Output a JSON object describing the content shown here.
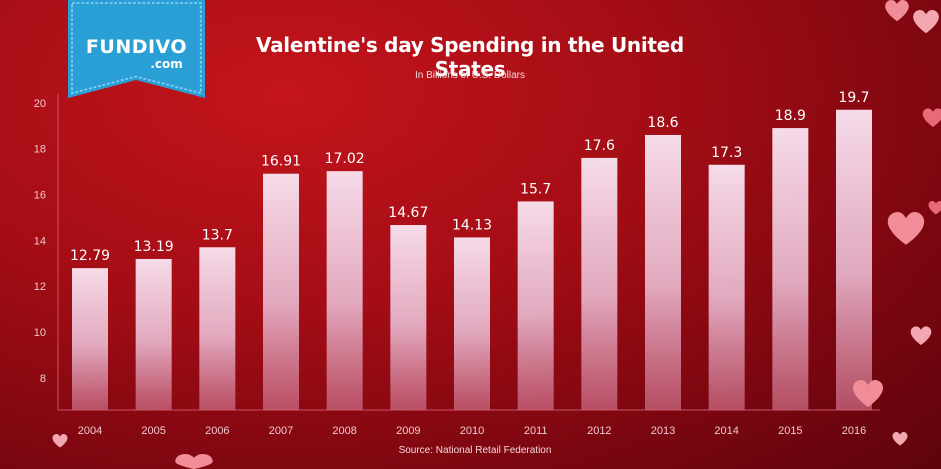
{
  "logo": {
    "brand": "FUNDIVO",
    "suffix": ".com"
  },
  "colors": {
    "background": "#a40d15",
    "bar": "#ecc3d6",
    "logo": "#2a9fd6"
  },
  "chart_data": {
    "type": "bar",
    "title": "Valentine's day Spending in the United States",
    "subtitle": "In Billions of U.S. Dollars",
    "source": "Source: National Retail Federation",
    "categories": [
      "2004",
      "2005",
      "2006",
      "2007",
      "2008",
      "2009",
      "2010",
      "2011",
      "2012",
      "2013",
      "2014",
      "2015",
      "2016"
    ],
    "values": [
      12.79,
      13.19,
      13.7,
      16.91,
      17.02,
      14.67,
      14.13,
      15.7,
      17.6,
      18.6,
      17.3,
      18.9,
      19.7
    ],
    "value_labels": [
      "12.79",
      "13.19",
      "13.7",
      "16.91",
      "17.02",
      "14.67",
      "14.13",
      "15.7",
      "17.6",
      "18.6",
      "17.3",
      "18.9",
      "19.7"
    ],
    "yticks": [
      8,
      10,
      12,
      14,
      16,
      18,
      20
    ],
    "ylim": [
      6.6,
      20.3
    ],
    "grid": false,
    "legend": "none"
  }
}
